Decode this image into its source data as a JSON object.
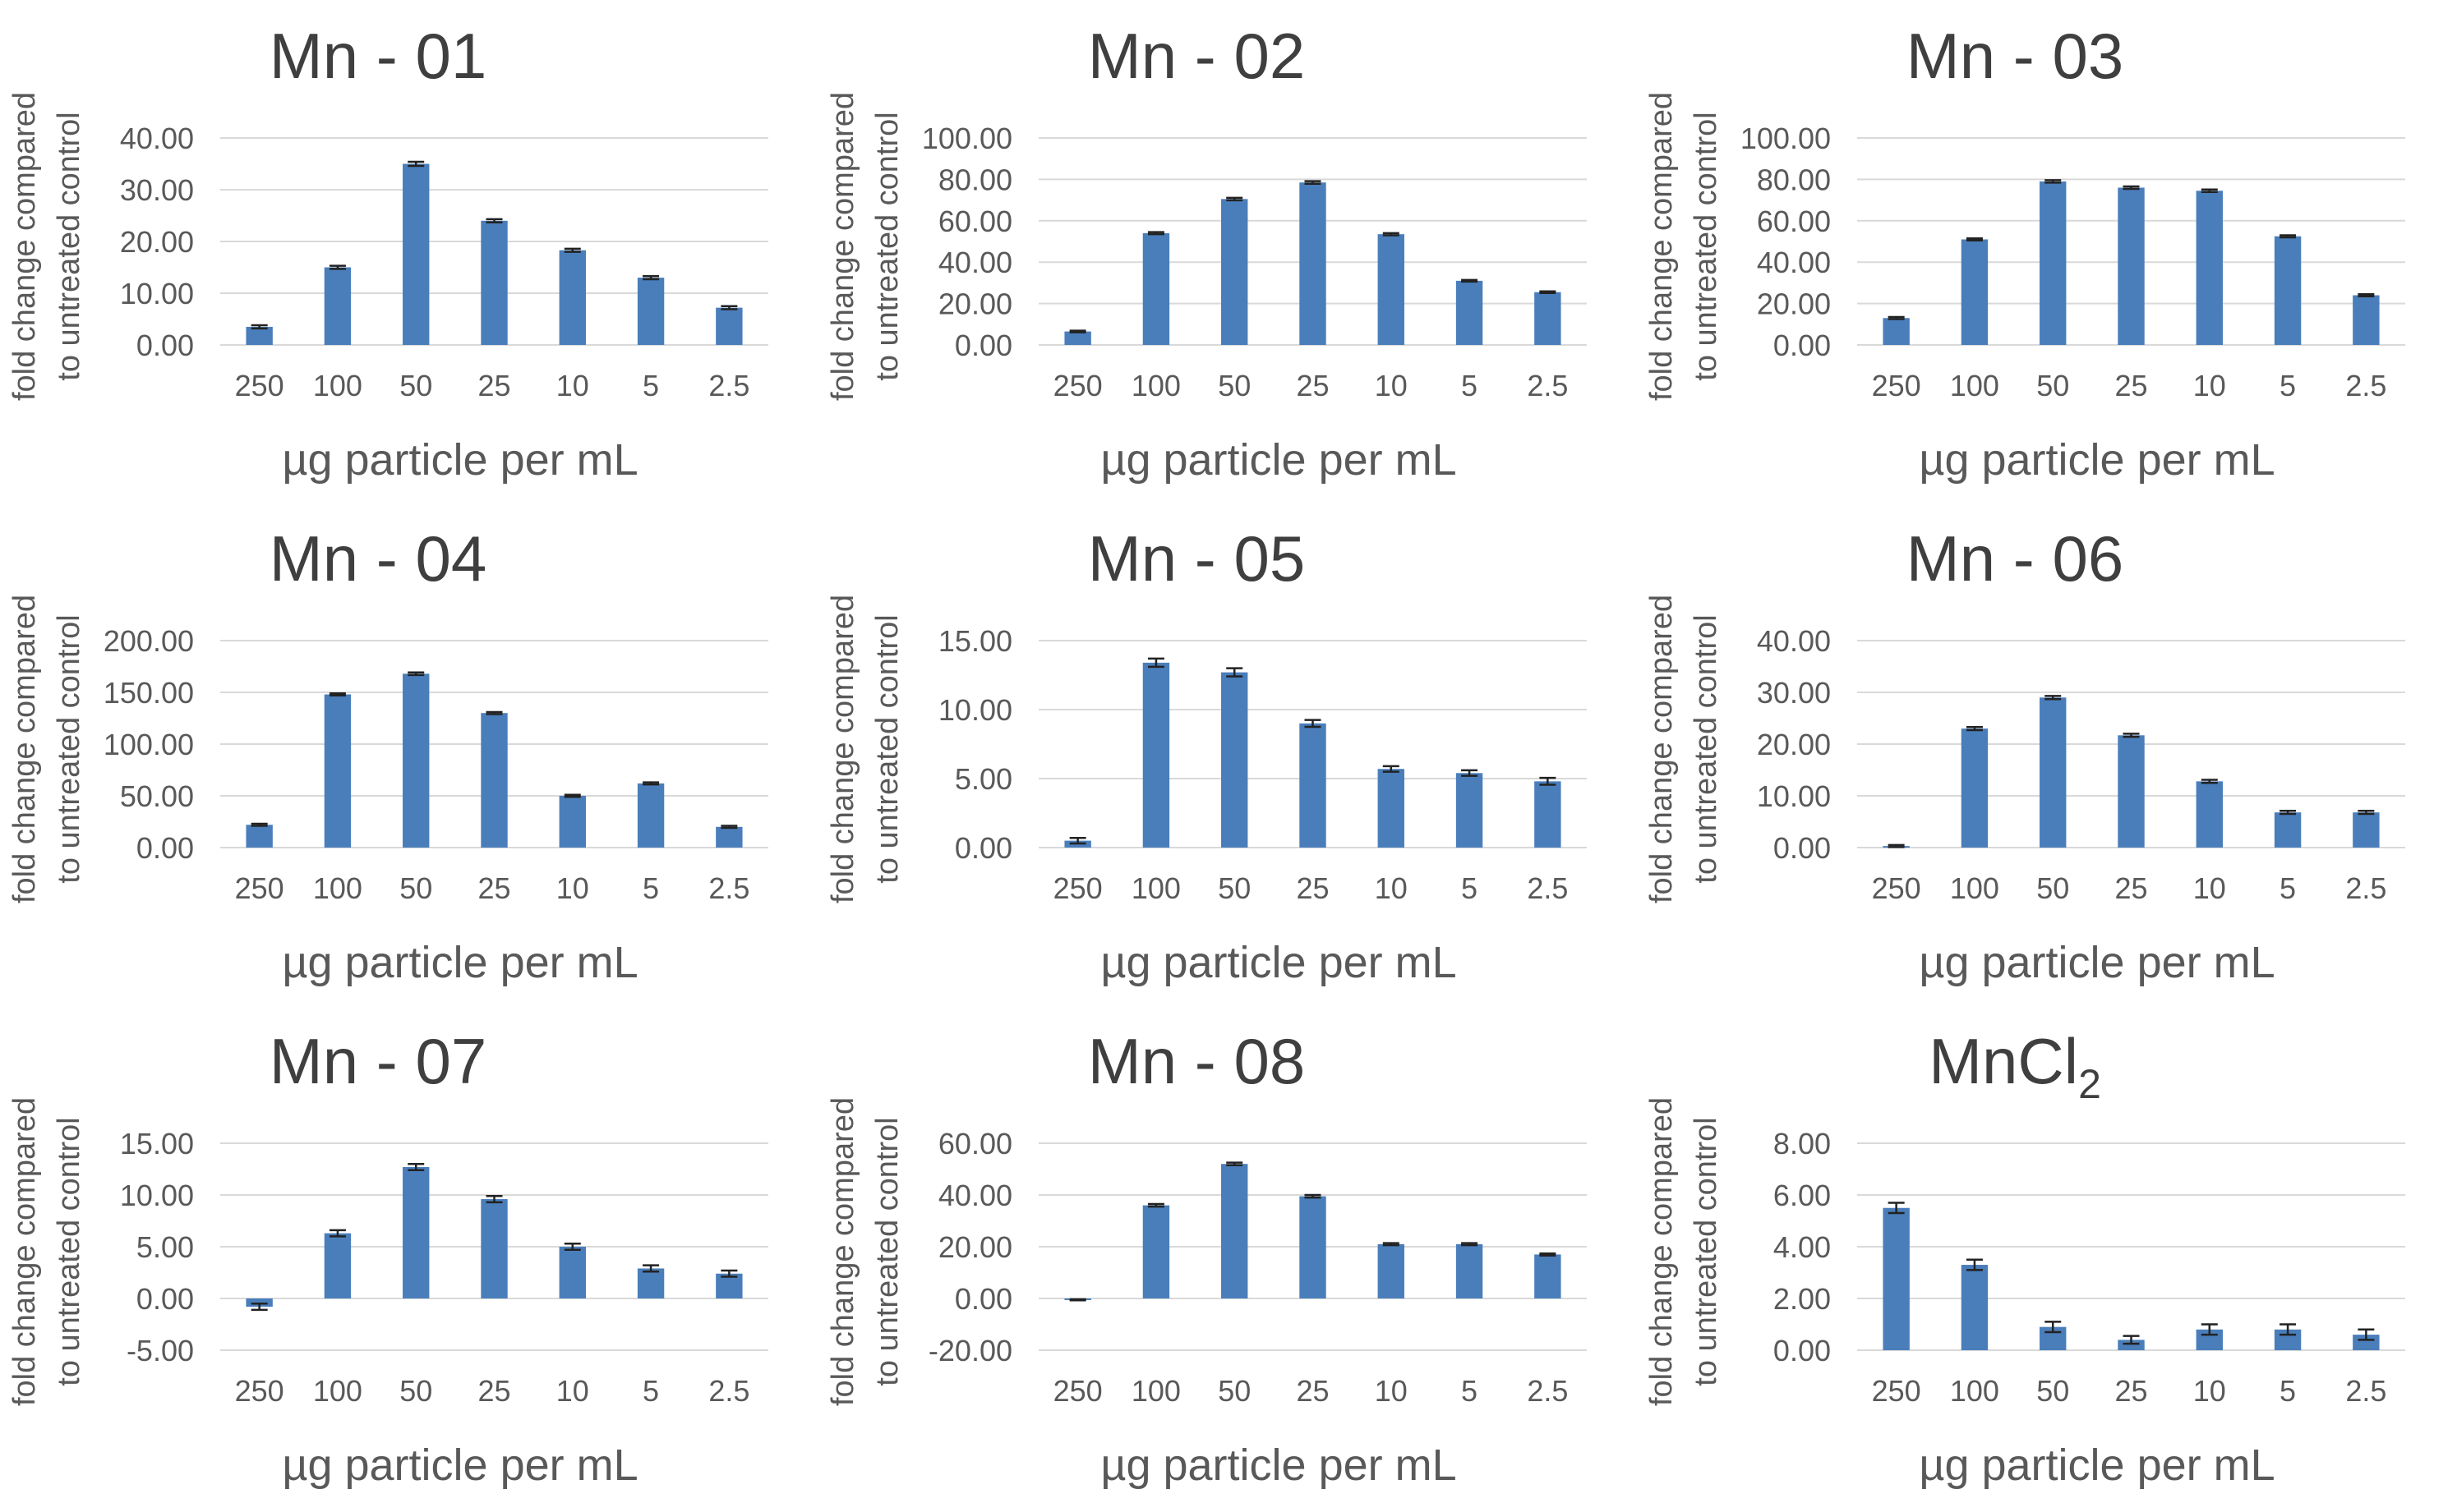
{
  "colors": {
    "bar": "#4a7ebb",
    "grid": "#d9d9d9",
    "text": "#595959",
    "title": "#3f3f3f",
    "error": "#222222"
  },
  "chart_data": [
    {
      "type": "bar",
      "title": "Mn - 01",
      "xlabel": "µg particle per mL",
      "ylabel_lines": [
        "fold change compared",
        "to untreated control"
      ],
      "categories": [
        "250",
        "100",
        "50",
        "25",
        "10",
        "5",
        "2.5"
      ],
      "values": [
        3.5,
        15.0,
        35.0,
        24.0,
        18.3,
        13.0,
        7.2
      ],
      "errors": [
        0.3,
        0.3,
        0.4,
        0.3,
        0.3,
        0.3,
        0.3
      ],
      "ylim": [
        0,
        40
      ],
      "yticks": [
        0,
        10,
        20,
        30,
        40
      ],
      "ytick_labels": [
        "0.00",
        "10.00",
        "20.00",
        "30.00",
        "40.00"
      ]
    },
    {
      "type": "bar",
      "title": "Mn - 02",
      "xlabel": "µg particle per mL",
      "ylabel_lines": [
        "fold change compared",
        "to untreated control"
      ],
      "categories": [
        "250",
        "100",
        "50",
        "25",
        "10",
        "5",
        "2.5"
      ],
      "values": [
        6.5,
        54.0,
        70.5,
        78.5,
        53.5,
        31.0,
        25.5
      ],
      "errors": [
        0.4,
        0.5,
        0.6,
        0.6,
        0.5,
        0.4,
        0.4
      ],
      "ylim": [
        0,
        100
      ],
      "yticks": [
        0,
        20,
        40,
        60,
        80,
        100
      ],
      "ytick_labels": [
        "0.00",
        "20.00",
        "40.00",
        "60.00",
        "80.00",
        "100.00"
      ]
    },
    {
      "type": "bar",
      "title": "Mn - 03",
      "xlabel": "µg particle per mL",
      "ylabel_lines": [
        "fold change compared",
        "to untreated control"
      ],
      "categories": [
        "250",
        "100",
        "50",
        "25",
        "10",
        "5",
        "2.5"
      ],
      "values": [
        13.0,
        51.0,
        79.0,
        76.0,
        74.5,
        52.5,
        24.0
      ],
      "errors": [
        0.5,
        0.5,
        0.6,
        0.6,
        0.6,
        0.5,
        0.5
      ],
      "ylim": [
        0,
        100
      ],
      "yticks": [
        0,
        20,
        40,
        60,
        80,
        100
      ],
      "ytick_labels": [
        "0.00",
        "20.00",
        "40.00",
        "60.00",
        "80.00",
        "100.00"
      ]
    },
    {
      "type": "bar",
      "title": "Mn - 04",
      "xlabel": "µg particle per mL",
      "ylabel_lines": [
        "fold change compared",
        "to untreated control"
      ],
      "categories": [
        "250",
        "100",
        "50",
        "25",
        "10",
        "5",
        "2.5"
      ],
      "values": [
        22.0,
        148.0,
        168.0,
        130.0,
        50.0,
        62.0,
        20.0
      ],
      "errors": [
        1.0,
        1.0,
        1.2,
        1.0,
        1.0,
        1.0,
        1.0
      ],
      "ylim": [
        0,
        200
      ],
      "yticks": [
        0,
        50,
        100,
        150,
        200
      ],
      "ytick_labels": [
        "0.00",
        "50.00",
        "100.00",
        "150.00",
        "200.00"
      ]
    },
    {
      "type": "bar",
      "title": "Mn - 05",
      "xlabel": "µg particle per mL",
      "ylabel_lines": [
        "fold change compared",
        "to untreated control"
      ],
      "categories": [
        "250",
        "100",
        "50",
        "25",
        "10",
        "5",
        "2.5"
      ],
      "values": [
        0.5,
        13.4,
        12.7,
        9.0,
        5.7,
        5.4,
        4.8
      ],
      "errors": [
        0.2,
        0.3,
        0.3,
        0.25,
        0.2,
        0.2,
        0.25
      ],
      "ylim": [
        0,
        15
      ],
      "yticks": [
        0,
        5,
        10,
        15
      ],
      "ytick_labels": [
        "0.00",
        "5.00",
        "10.00",
        "15.00"
      ]
    },
    {
      "type": "bar",
      "title": "Mn - 06",
      "xlabel": "µg particle per mL",
      "ylabel_lines": [
        "fold change compared",
        "to untreated control"
      ],
      "categories": [
        "250",
        "100",
        "50",
        "25",
        "10",
        "5",
        "2.5"
      ],
      "values": [
        0.3,
        23.0,
        29.0,
        21.7,
        12.8,
        6.8,
        6.8
      ],
      "errors": [
        0.2,
        0.3,
        0.3,
        0.3,
        0.3,
        0.3,
        0.3
      ],
      "ylim": [
        0,
        40
      ],
      "yticks": [
        0,
        10,
        20,
        30,
        40
      ],
      "ytick_labels": [
        "0.00",
        "10.00",
        "20.00",
        "30.00",
        "40.00"
      ]
    },
    {
      "type": "bar",
      "title": "Mn - 07",
      "xlabel": "µg particle per mL",
      "ylabel_lines": [
        "fold change compared",
        "to untreated control"
      ],
      "categories": [
        "250",
        "100",
        "50",
        "25",
        "10",
        "5",
        "2.5"
      ],
      "values": [
        -0.8,
        6.3,
        12.7,
        9.6,
        5.0,
        2.9,
        2.4
      ],
      "errors": [
        0.3,
        0.3,
        0.3,
        0.3,
        0.3,
        0.3,
        0.3
      ],
      "ylim": [
        -5,
        15
      ],
      "yticks": [
        -5,
        0,
        5,
        10,
        15
      ],
      "ytick_labels": [
        "-5.00",
        "0.00",
        "5.00",
        "10.00",
        "15.00"
      ]
    },
    {
      "type": "bar",
      "title": "Mn - 08",
      "xlabel": "µg particle per mL",
      "ylabel_lines": [
        "fold change compared",
        "to untreated control"
      ],
      "categories": [
        "250",
        "100",
        "50",
        "25",
        "10",
        "5",
        "2.5"
      ],
      "values": [
        -0.5,
        36.0,
        52.0,
        39.5,
        21.0,
        21.0,
        17.0
      ],
      "errors": [
        0.2,
        0.5,
        0.5,
        0.5,
        0.4,
        0.4,
        0.4
      ],
      "ylim": [
        -20,
        60
      ],
      "yticks": [
        -20,
        0,
        20,
        40,
        60
      ],
      "ytick_labels": [
        "-20.00",
        "0.00",
        "20.00",
        "40.00",
        "60.00"
      ]
    },
    {
      "type": "bar",
      "title": "MnCl",
      "title_subscript": "2",
      "xlabel": "µg particle per mL",
      "ylabel_lines": [
        "fold change compared",
        "to untreated control"
      ],
      "categories": [
        "250",
        "100",
        "50",
        "25",
        "10",
        "5",
        "2.5"
      ],
      "values": [
        5.5,
        3.3,
        0.9,
        0.4,
        0.8,
        0.8,
        0.6
      ],
      "errors": [
        0.2,
        0.2,
        0.2,
        0.15,
        0.2,
        0.2,
        0.2
      ],
      "ylim": [
        0,
        8
      ],
      "yticks": [
        0,
        2,
        4,
        6,
        8
      ],
      "ytick_labels": [
        "0.00",
        "2.00",
        "4.00",
        "6.00",
        "8.00"
      ]
    }
  ]
}
